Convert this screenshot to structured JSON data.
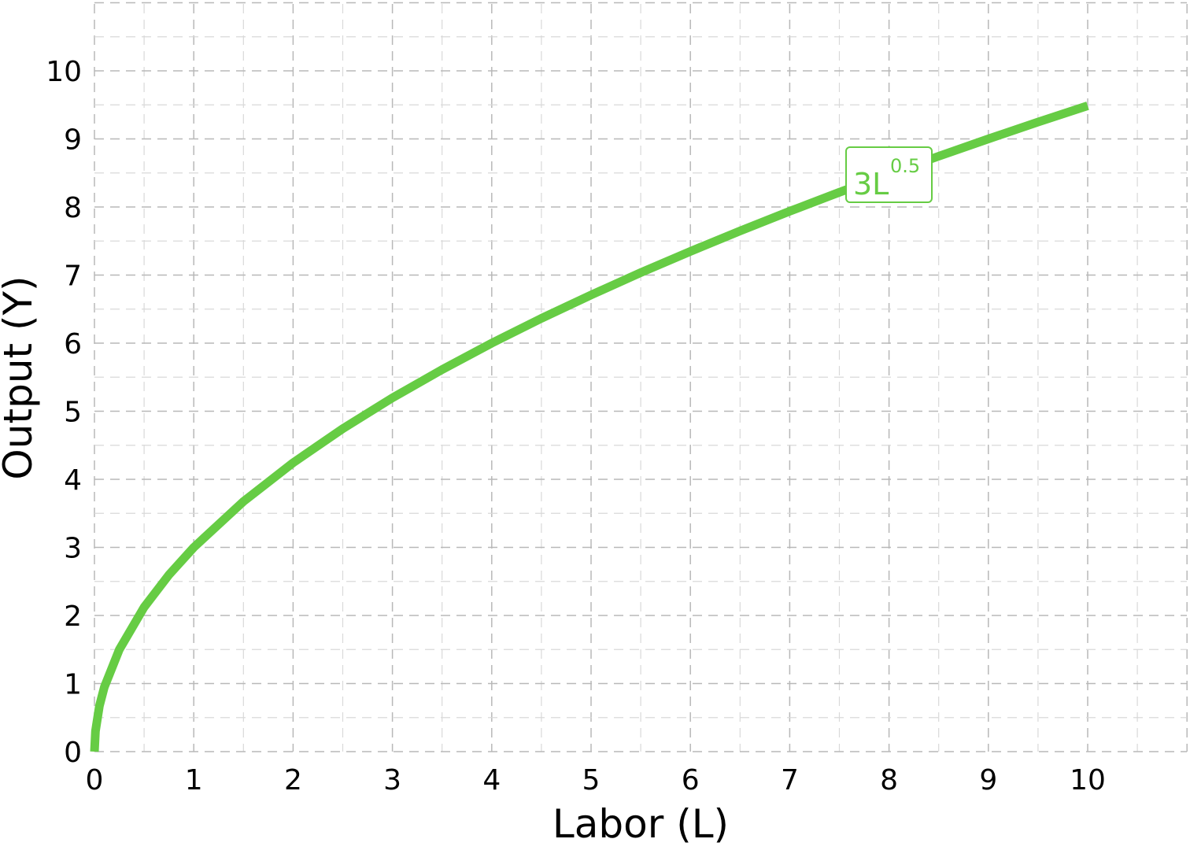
{
  "chart_data": {
    "type": "line",
    "xlabel": "Labor (L)",
    "ylabel": "Output (Y)",
    "xlim": [
      0,
      11
    ],
    "ylim": [
      0,
      11
    ],
    "x_ticks": [
      "0",
      "1",
      "2",
      "3",
      "4",
      "5",
      "6",
      "7",
      "8",
      "9",
      "10"
    ],
    "y_ticks": [
      "0",
      "1",
      "2",
      "3",
      "4",
      "5",
      "6",
      "7",
      "8",
      "9",
      "10"
    ],
    "grid": true,
    "series": [
      {
        "name": "3L^0.5",
        "label_base": "3L",
        "label_exponent": "0.5",
        "color": "#66cc44",
        "x": [
          0,
          0.01,
          0.05,
          0.1,
          0.25,
          0.5,
          0.75,
          1,
          1.5,
          2,
          2.5,
          3,
          3.5,
          4,
          4.5,
          5,
          5.5,
          6,
          6.5,
          7,
          7.5,
          8,
          8.5,
          9,
          9.5,
          10
        ],
        "y": [
          0,
          0.3,
          0.671,
          0.949,
          1.5,
          2.121,
          2.598,
          3,
          3.674,
          4.243,
          4.743,
          5.196,
          5.612,
          6,
          6.364,
          6.708,
          7.036,
          7.348,
          7.649,
          7.937,
          8.216,
          8.485,
          8.746,
          9,
          9.247,
          9.487
        ]
      }
    ]
  }
}
